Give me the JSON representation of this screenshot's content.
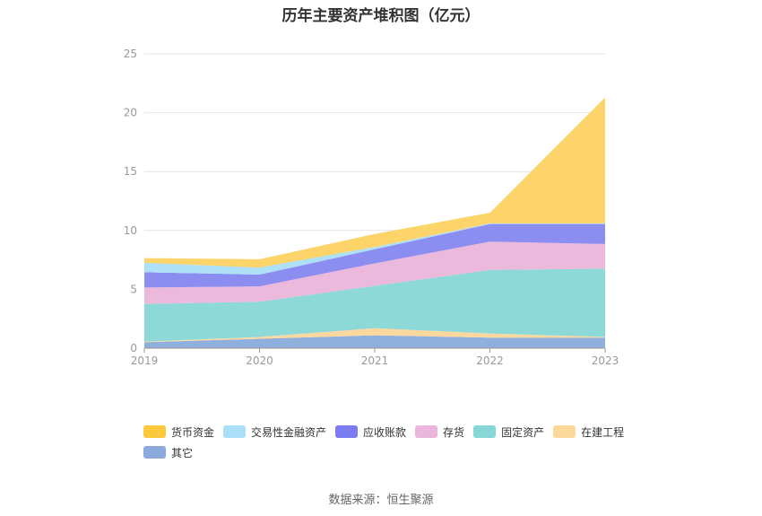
{
  "title": "历年主要资产堆积图（亿元）",
  "source": "数据来源：恒生聚源",
  "chart_data": {
    "type": "area",
    "stacked": true,
    "title": "历年主要资产堆积图（亿元）",
    "categories": [
      "2019",
      "2020",
      "2021",
      "2022",
      "2023"
    ],
    "ylim": [
      0,
      25
    ],
    "yticks": [
      0,
      5,
      10,
      15,
      20,
      25
    ],
    "grid": true,
    "legend_position": "bottom",
    "series": [
      {
        "name": "其它",
        "color": "#8fb0dc",
        "values": [
          0.5,
          0.8,
          1.1,
          0.9,
          0.9
        ]
      },
      {
        "name": "在建工程",
        "color": "#fdd89e",
        "values": [
          0.05,
          0.15,
          0.6,
          0.35,
          0.05
        ]
      },
      {
        "name": "固定资产",
        "color": "#8dd9d8",
        "values": [
          3.2,
          3.0,
          3.6,
          5.4,
          5.8
        ]
      },
      {
        "name": "存货",
        "color": "#ebb9dc",
        "values": [
          1.4,
          1.3,
          1.9,
          2.4,
          2.1
        ]
      },
      {
        "name": "应收账款",
        "color": "#8c8df0",
        "values": [
          1.3,
          1.0,
          1.2,
          1.5,
          1.7
        ]
      },
      {
        "name": "交易性金融资产",
        "color": "#aee0f7",
        "values": [
          0.8,
          0.6,
          0.2,
          0.05,
          0.05
        ]
      },
      {
        "name": "货币资金",
        "color": "#fdd46a",
        "values": [
          0.4,
          0.7,
          1.1,
          0.9,
          10.7
        ]
      }
    ],
    "legend_order": [
      "货币资金",
      "交易性金融资产",
      "应收账款",
      "存货",
      "固定资产",
      "在建工程",
      "其它"
    ],
    "legend_colors": {
      "货币资金": "#fcc93b",
      "交易性金融资产": "#a9dff8",
      "应收账款": "#7a7cf0",
      "存货": "#eab6dc",
      "固定资产": "#86d8d6",
      "在建工程": "#fdd89b",
      "其它": "#8ca9dc"
    }
  }
}
